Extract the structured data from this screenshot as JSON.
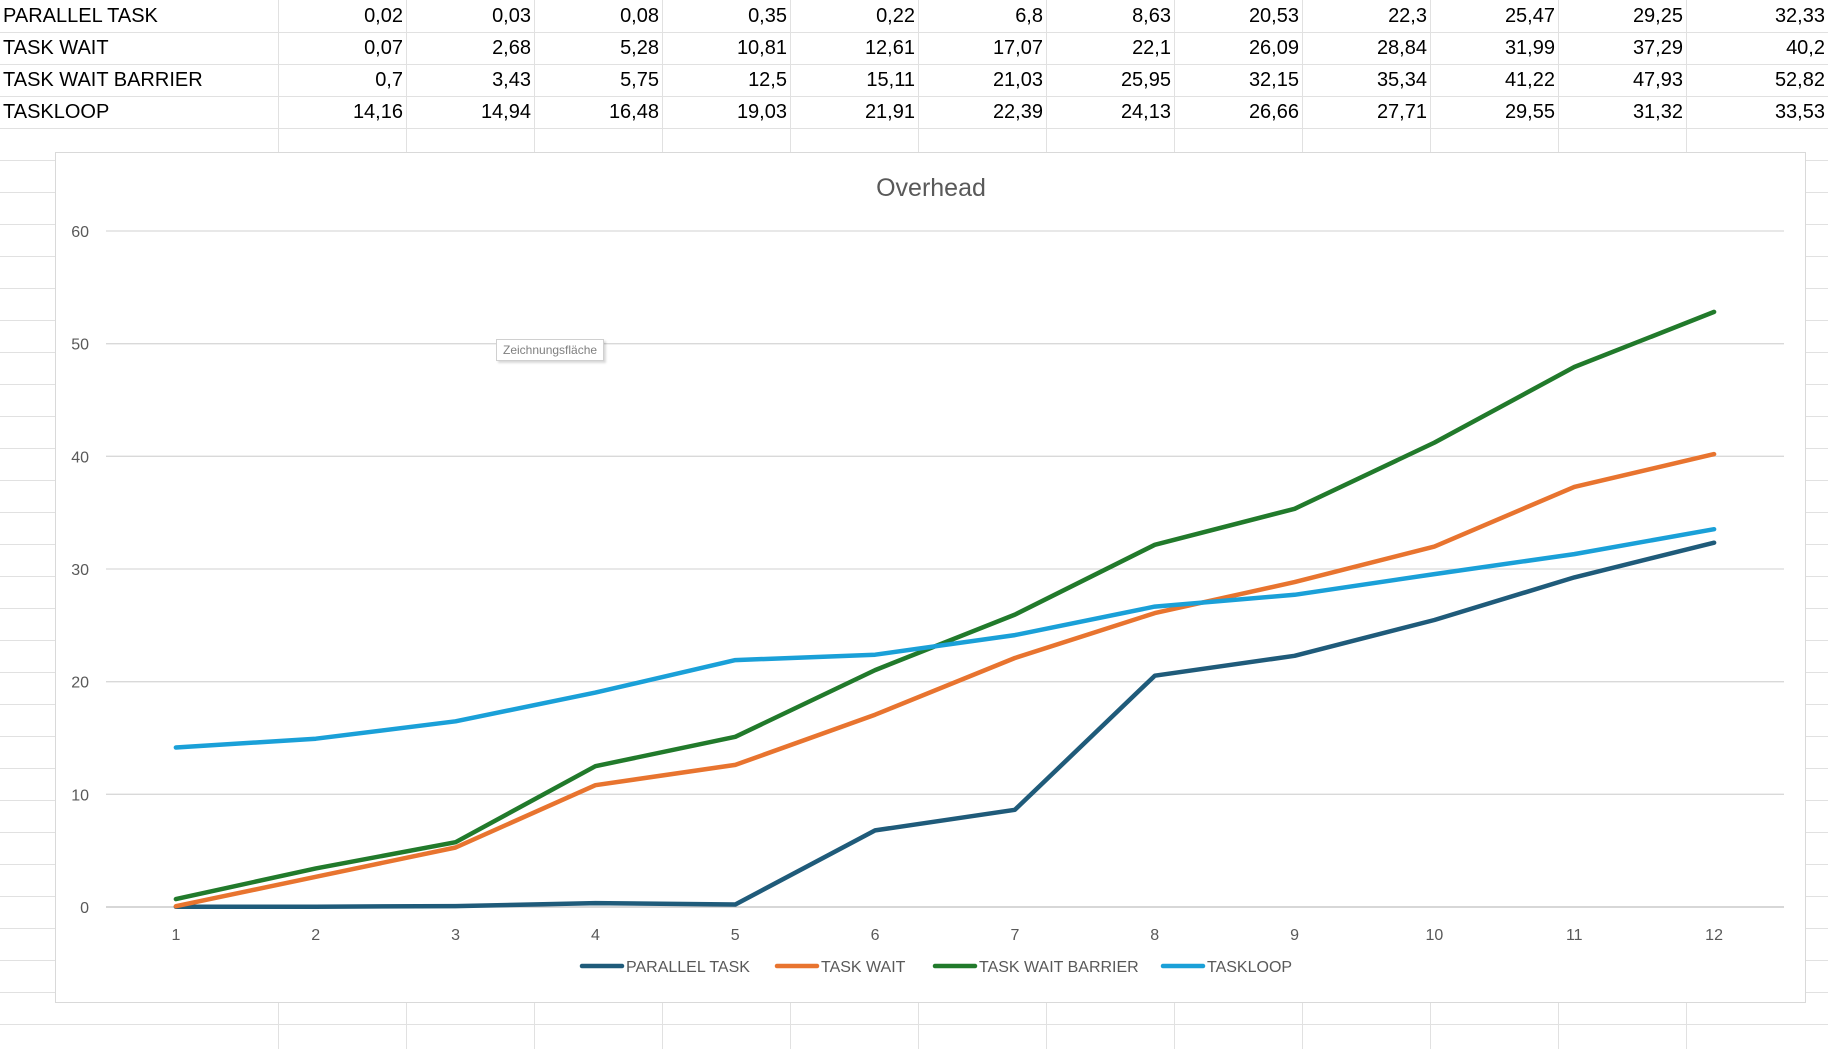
{
  "sheet": {
    "rows": [
      {
        "label": "PARALLEL TASK",
        "values": [
          "0,02",
          "0,03",
          "0,08",
          "0,35",
          "0,22",
          "6,8",
          "8,63",
          "20,53",
          "22,3",
          "25,47",
          "29,25",
          "32,33"
        ]
      },
      {
        "label": "TASK WAIT",
        "values": [
          "0,07",
          "2,68",
          "5,28",
          "10,81",
          "12,61",
          "17,07",
          "22,1",
          "26,09",
          "28,84",
          "31,99",
          "37,29",
          "40,2"
        ]
      },
      {
        "label": "TASK WAIT BARRIER",
        "values": [
          "0,7",
          "3,43",
          "5,75",
          "12,5",
          "15,11",
          "21,03",
          "25,95",
          "32,15",
          "35,34",
          "41,22",
          "47,93",
          "52,82"
        ]
      },
      {
        "label": "TASKLOOP",
        "values": [
          "14,16",
          "14,94",
          "16,48",
          "19,03",
          "21,91",
          "22,39",
          "24,13",
          "26,66",
          "27,71",
          "29,55",
          "31,32",
          "33,53"
        ]
      }
    ]
  },
  "chart_data": {
    "type": "line",
    "title": "Overhead",
    "x": [
      1,
      2,
      3,
      4,
      5,
      6,
      7,
      8,
      9,
      10,
      11,
      12
    ],
    "ylim": [
      0,
      60
    ],
    "yticks": [
      0,
      10,
      20,
      30,
      40,
      50,
      60
    ],
    "grid": true,
    "legend": "bottom",
    "series": [
      {
        "name": "PARALLEL TASK",
        "color": "#1f5b7a",
        "values": [
          0.02,
          0.03,
          0.08,
          0.35,
          0.22,
          6.8,
          8.63,
          20.53,
          22.3,
          25.47,
          29.25,
          32.33
        ]
      },
      {
        "name": "TASK WAIT",
        "color": "#e8742f",
        "values": [
          0.07,
          2.68,
          5.28,
          10.81,
          12.61,
          17.07,
          22.1,
          26.09,
          28.84,
          31.99,
          37.29,
          40.2
        ]
      },
      {
        "name": "TASK WAIT BARRIER",
        "color": "#217a2b",
        "values": [
          0.7,
          3.43,
          5.75,
          12.5,
          15.11,
          21.03,
          25.95,
          32.15,
          35.34,
          41.22,
          47.93,
          52.82
        ]
      },
      {
        "name": "TASKLOOP",
        "color": "#1aa0d8",
        "values": [
          14.16,
          14.94,
          16.48,
          19.03,
          21.91,
          22.39,
          24.13,
          26.66,
          27.71,
          29.55,
          31.32,
          33.53
        ]
      }
    ]
  },
  "tooltip": {
    "text": "Zeichnungsfläche"
  }
}
